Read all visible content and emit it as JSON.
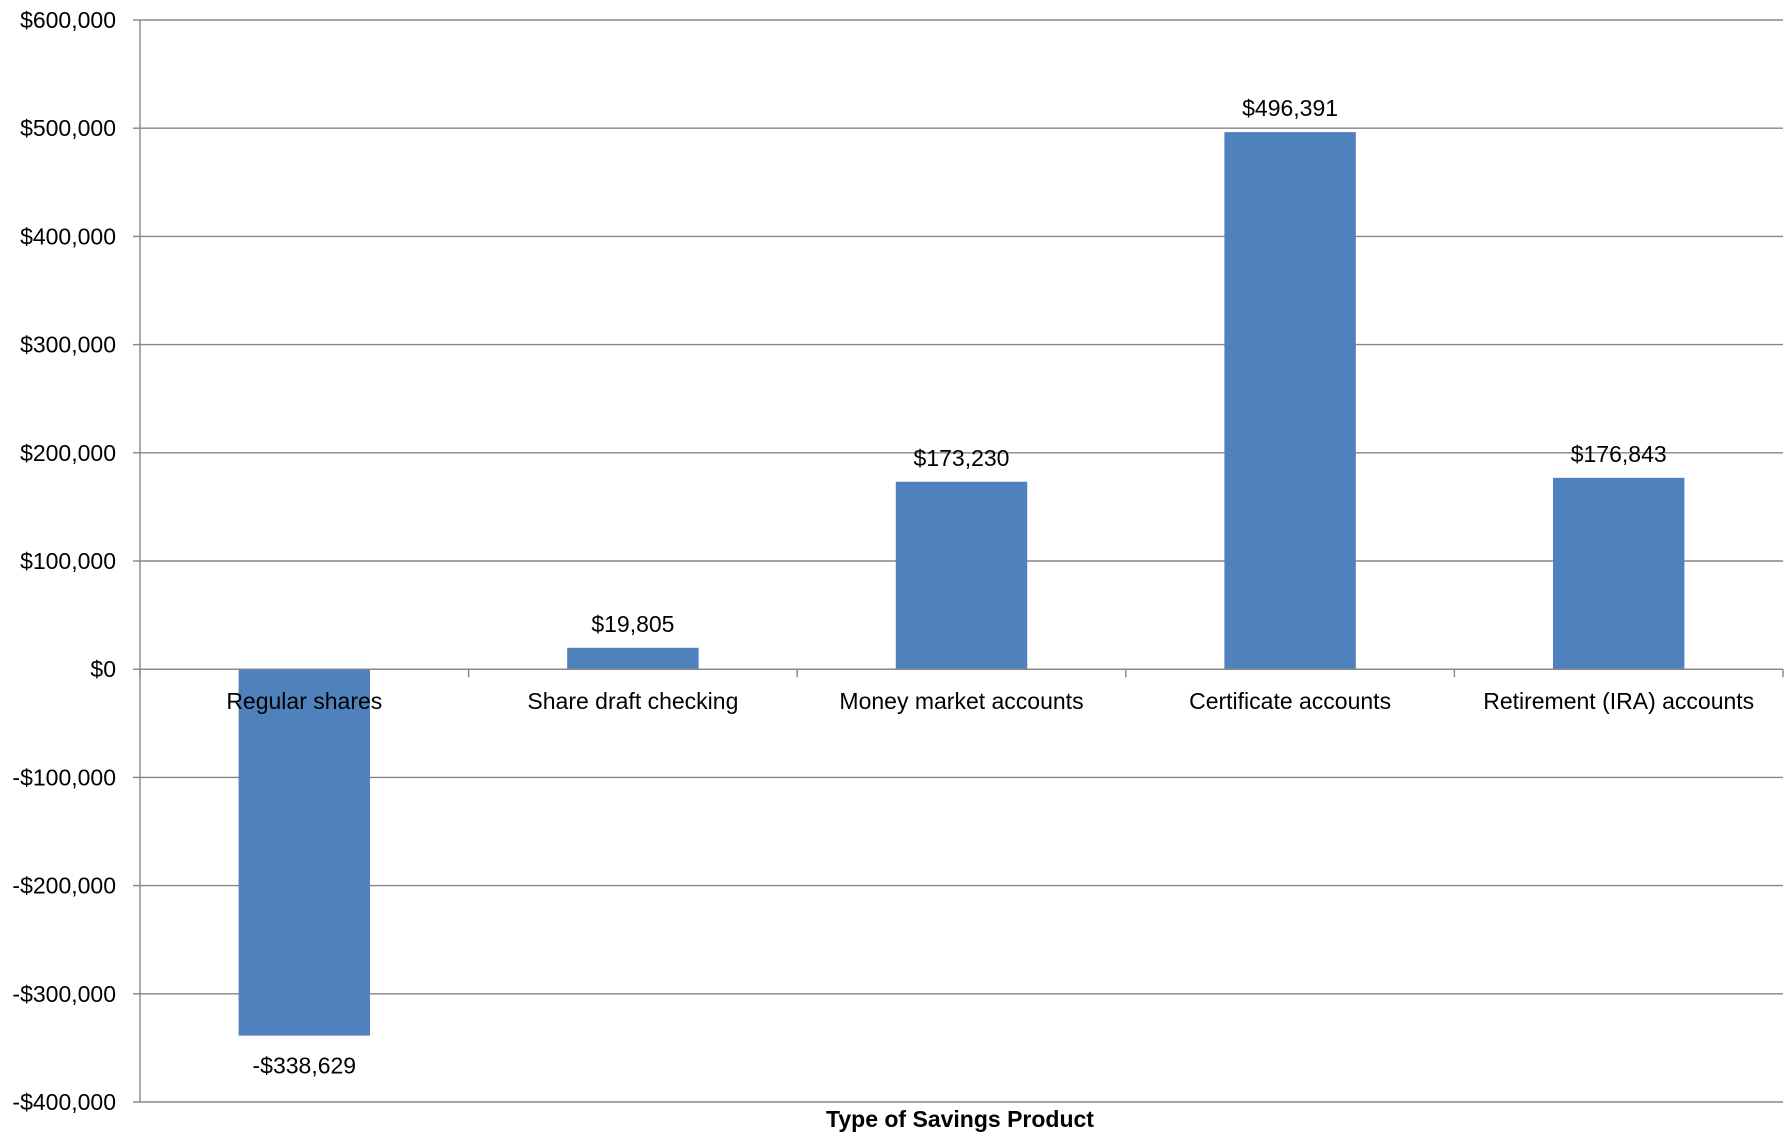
{
  "chart_data": {
    "type": "bar",
    "title": "",
    "xlabel": "Type of Savings Product",
    "ylabel": "",
    "categories": [
      "Regular shares",
      "Share draft checking",
      "Money market accounts",
      "Certificate accounts",
      "Retirement (IRA) accounts"
    ],
    "values": [
      -338629,
      19805,
      173230,
      496391,
      176843
    ],
    "data_labels": [
      "-$338,629",
      "$19,805",
      "$173,230",
      "$496,391",
      "$176,843"
    ],
    "ylim": [
      -400000,
      600000
    ],
    "y_ticks": [
      600000,
      500000,
      400000,
      300000,
      200000,
      100000,
      0,
      -100000,
      -200000,
      -300000,
      -400000
    ],
    "y_tick_labels": [
      "$600,000",
      "$500,000",
      "$400,000",
      "$300,000",
      "$200,000",
      "$100,000",
      "$0",
      "-$100,000",
      "-$200,000",
      "-$300,000",
      "-$400,000"
    ],
    "grid": true,
    "legend": "none",
    "bar_color": "#4F81BD"
  }
}
